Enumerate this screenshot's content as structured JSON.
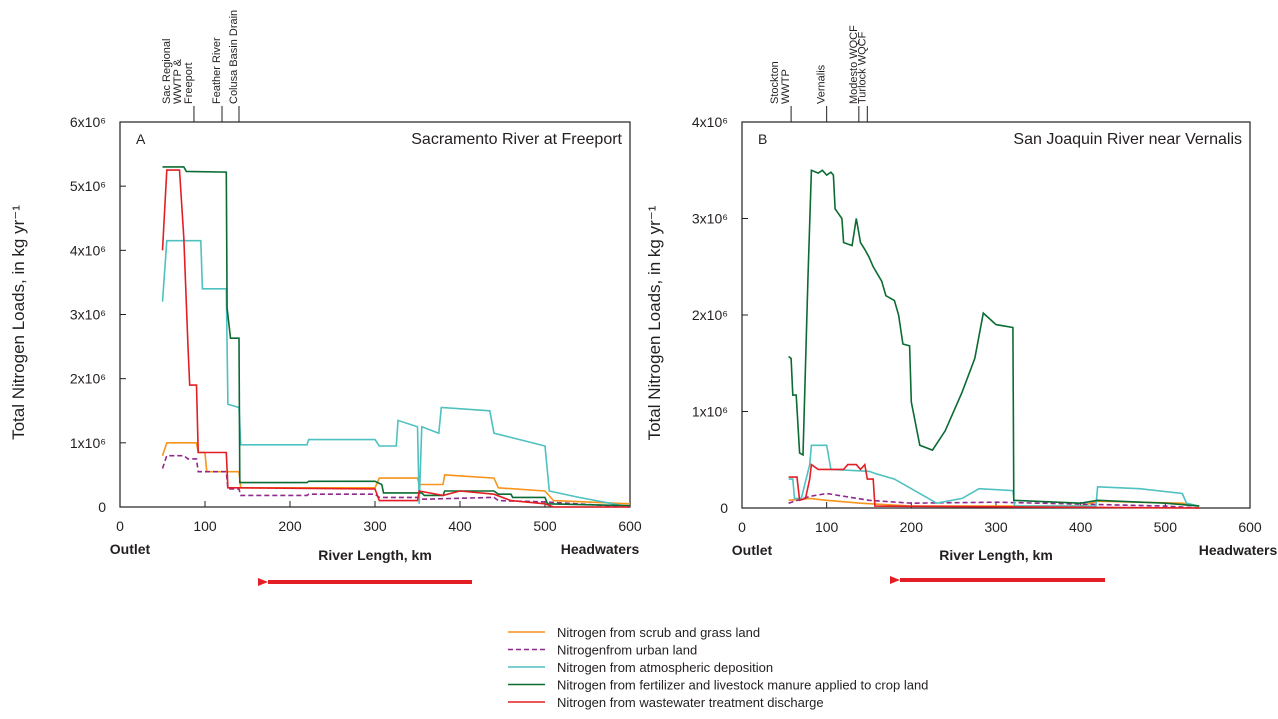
{
  "chart_data": [
    {
      "type": "line",
      "panel": "A",
      "title": "Sacramento River at Freeport",
      "y_label": "Total Nitrogen Loads, in kg yr⁻¹",
      "x_label": "River Length, km",
      "x_left_label": "Outlet",
      "x_right_label": "Headwaters",
      "xlim": [
        0,
        600
      ],
      "xticks": [
        0,
        100,
        200,
        300,
        400,
        500,
        600
      ],
      "ylim": [
        0,
        6000000.0
      ],
      "yticks": [
        0,
        {
          "value": 1000000.0,
          "label": "1x10⁶"
        },
        {
          "value": 2000000.0,
          "label": "2x10⁶"
        },
        {
          "value": 3000000.0,
          "label": "3x10⁶"
        },
        {
          "value": 4000000.0,
          "label": "4x10⁶"
        },
        {
          "value": 5000000.0,
          "label": "5x10⁶"
        },
        {
          "value": 6000000.0,
          "label": "6x10⁶"
        }
      ],
      "annotations": [
        {
          "lines": [
            "Sac Regional",
            "WWTP &",
            "Freeport"
          ],
          "x": 87
        },
        {
          "lines": [
            "Feather River"
          ],
          "x": 120
        },
        {
          "lines": [
            "Colusa Basin Drain"
          ],
          "x": 140
        }
      ],
      "series": [
        {
          "name": "Nitrogen from scrub and grass land",
          "color": "#f7941d",
          "dash": false,
          "x": [
            50,
            55,
            90,
            92,
            100,
            102,
            140,
            142,
            300,
            305,
            350,
            352,
            380,
            382,
            440,
            445,
            500,
            510,
            600
          ],
          "values": [
            800000.0,
            1000000.0,
            1000000.0,
            850000.0,
            850000.0,
            550000.0,
            550000.0,
            300000.0,
            300000.0,
            450000.0,
            450000.0,
            350000.0,
            350000.0,
            500000.0,
            450000.0,
            300000.0,
            250000.0,
            100000.0,
            50000.0
          ]
        },
        {
          "name": "Nitrogenfrom urban land",
          "color": "#92278f",
          "dash": true,
          "x": [
            50,
            55,
            75,
            80,
            90,
            92,
            125,
            127,
            140,
            142,
            220,
            222,
            300,
            305,
            350,
            352,
            440,
            445,
            500,
            600
          ],
          "values": [
            600000.0,
            800000.0,
            800000.0,
            750000.0,
            750000.0,
            550000.0,
            550000.0,
            280000.0,
            280000.0,
            180000.0,
            180000.0,
            200000.0,
            200000.0,
            150000.0,
            150000.0,
            120000.0,
            150000.0,
            100000.0,
            80000.0,
            0
          ]
        },
        {
          "name": "Nitrogen from atmospheric deposition",
          "color": "#4fc1c0",
          "dash": false,
          "x": [
            50,
            55,
            95,
            97,
            125,
            127,
            140,
            142,
            220,
            222,
            300,
            305,
            325,
            327,
            350,
            352,
            355,
            375,
            378,
            435,
            440,
            500,
            505,
            540,
            580,
            600
          ],
          "values": [
            3200000.0,
            4150000.0,
            4150000.0,
            3400000.0,
            3400000.0,
            1600000.0,
            1550000.0,
            970000.0,
            970000.0,
            1050000.0,
            1050000.0,
            950000.0,
            950000.0,
            1350000.0,
            1250000.0,
            50000.0,
            1250000.0,
            1150000.0,
            1550000.0,
            1500000.0,
            1150000.0,
            950000.0,
            250000.0,
            150000.0,
            50000.0,
            0
          ]
        },
        {
          "name": "Nitrogen from fertilizer and livestock manure applied to crop land",
          "color": "#0b6b33",
          "dash": false,
          "x": [
            50,
            75,
            78,
            125,
            126,
            130,
            140,
            141,
            220,
            222,
            300,
            308,
            310,
            355,
            358,
            380,
            382,
            440,
            445,
            460,
            462,
            500,
            503,
            600
          ],
          "values": [
            5300000.0,
            5300000.0,
            5230000.0,
            5220000.0,
            3100000.0,
            2630000.0,
            2630000.0,
            380000.0,
            380000.0,
            400000.0,
            400000.0,
            350000.0,
            220000.0,
            220000.0,
            180000.0,
            180000.0,
            250000.0,
            250000.0,
            200000.0,
            200000.0,
            150000.0,
            150000.0,
            50000.0,
            20000.0
          ]
        },
        {
          "name": "Nitrogen from wastewater treatment discharge",
          "color": "#e31e24",
          "dash": false,
          "x": [
            50,
            55,
            70,
            75,
            80,
            82,
            90,
            92,
            125,
            127,
            140,
            300,
            305,
            350,
            352,
            380,
            400,
            440,
            460,
            500,
            510,
            600
          ],
          "values": [
            4000000.0,
            5250000.0,
            5250000.0,
            4200000.0,
            2500000.0,
            1900000.0,
            1900000.0,
            850000.0,
            850000.0,
            300000.0,
            300000.0,
            280000.0,
            100000.0,
            100000.0,
            250000.0,
            180000.0,
            250000.0,
            200000.0,
            100000.0,
            50000.0,
            0,
            0
          ]
        }
      ]
    },
    {
      "type": "line",
      "panel": "B",
      "title": "San Joaquin River near Vernalis",
      "y_label": "Total Nitrogen Loads, in kg yr⁻¹",
      "x_label": "River Length, km",
      "x_left_label": "Outlet",
      "x_right_label": "Headwaters",
      "xlim": [
        0,
        600
      ],
      "xticks": [
        0,
        100,
        200,
        300,
        400,
        500,
        600
      ],
      "ylim": [
        0,
        4000000.0
      ],
      "yticks": [
        0,
        {
          "value": 1000000.0,
          "label": "1x10⁶"
        },
        {
          "value": 2000000.0,
          "label": "2x10⁶"
        },
        {
          "value": 3000000.0,
          "label": "3x10⁶"
        },
        {
          "value": 4000000.0,
          "label": "4x10⁶"
        }
      ],
      "annotations": [
        {
          "lines": [
            "Stockton",
            "WWTP"
          ],
          "x": 58
        },
        {
          "lines": [
            "Vernalis"
          ],
          "x": 100
        },
        {
          "lines": [
            "Modesto WQCF"
          ],
          "x": 138
        },
        {
          "lines": [
            "Turlock WQCF"
          ],
          "x": 148
        }
      ],
      "series": [
        {
          "color": "#f7941d",
          "dash": false,
          "x": [
            55,
            80,
            100,
            140,
            200,
            400,
            420,
            520,
            540
          ],
          "values": [
            80000.0,
            100000.0,
            80000.0,
            50000.0,
            20000.0,
            20000.0,
            70000.0,
            50000.0,
            20000.0
          ]
        },
        {
          "color": "#92278f",
          "dash": true,
          "x": [
            55,
            80,
            100,
            150,
            200,
            300,
            400,
            500,
            540
          ],
          "values": [
            50000.0,
            120000.0,
            150000.0,
            80000.0,
            50000.0,
            60000.0,
            40000.0,
            20000.0,
            0
          ]
        },
        {
          "color": "#4fc1c0",
          "dash": false,
          "x": [
            55,
            60,
            62,
            70,
            80,
            82,
            100,
            105,
            150,
            160,
            180,
            200,
            230,
            260,
            280,
            320,
            322,
            418,
            420,
            470,
            520,
            525,
            540
          ],
          "values": [
            300000.0,
            300000.0,
            100000.0,
            100000.0,
            450000.0,
            650000.0,
            650000.0,
            400000.0,
            380000.0,
            350000.0,
            300000.0,
            200000.0,
            50000.0,
            100000.0,
            200000.0,
            180000.0,
            20000.0,
            20000.0,
            220000.0,
            200000.0,
            150000.0,
            50000.0,
            20000.0
          ]
        },
        {
          "color": "#0b6b33",
          "dash": false,
          "x": [
            55,
            58,
            60,
            64,
            68,
            72,
            78,
            82,
            90,
            95,
            100,
            105,
            108,
            110,
            118,
            120,
            130,
            135,
            140,
            145,
            150,
            155,
            165,
            170,
            180,
            185,
            190,
            198,
            200,
            210,
            225,
            240,
            260,
            275,
            285,
            300,
            320,
            321,
            400,
            420,
            500,
            540
          ],
          "values": [
            1570000.0,
            1550000.0,
            1170000.0,
            1170000.0,
            570000.0,
            550000.0,
            2400000.0,
            3500000.0,
            3470000.0,
            3500000.0,
            3450000.0,
            3480000.0,
            3450000.0,
            3100000.0,
            3000000.0,
            2750000.0,
            2720000.0,
            3000000.0,
            2750000.0,
            2680000.0,
            2600000.0,
            2500000.0,
            2350000.0,
            2200000.0,
            2150000.0,
            2000000.0,
            1700000.0,
            1680000.0,
            1100000.0,
            650000.0,
            600000.0,
            800000.0,
            1200000.0,
            1550000.0,
            2020000.0,
            1900000.0,
            1870000.0,
            80000.0,
            50000.0,
            80000.0,
            50000.0,
            20000.0
          ]
        },
        {
          "color": "#e31e24",
          "dash": false,
          "x": [
            55,
            65,
            68,
            75,
            80,
            82,
            90,
            120,
            125,
            135,
            140,
            145,
            148,
            155,
            157,
            540
          ],
          "values": [
            320000.0,
            320000.0,
            80000.0,
            100000.0,
            300000.0,
            450000.0,
            400000.0,
            400000.0,
            450000.0,
            450000.0,
            400000.0,
            450000.0,
            300000.0,
            300000.0,
            20000.0,
            0
          ]
        }
      ]
    }
  ]
}
